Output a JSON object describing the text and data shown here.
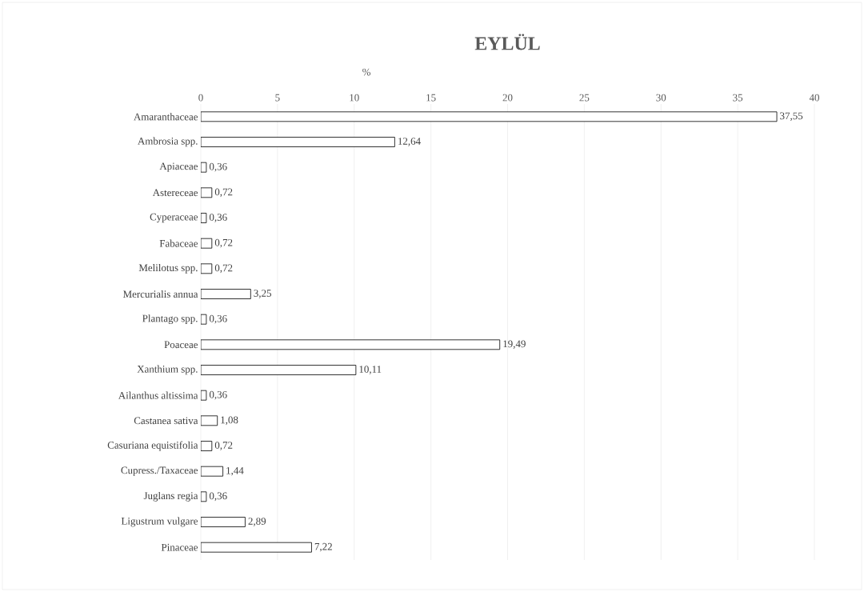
{
  "chart_data": {
    "type": "bar",
    "orientation": "horizontal",
    "title": "EYLÜL",
    "xlabel": "%",
    "categories": [
      "Amaranthaceae",
      "Ambrosia spp.",
      "Apiaceae",
      "Astereceae",
      "Cyperaceae",
      "Fabaceae",
      "Melilotus spp.",
      "Mercurialis annua",
      "Plantago spp.",
      "Poaceae",
      "Xanthium spp.",
      "Ailanthus altissima",
      "Castanea sativa",
      "Casuriana equistifolia",
      "Cupress./Taxaceae",
      "Juglans regia",
      "Ligustrum vulgare",
      "Pinaceae"
    ],
    "values": [
      37.55,
      12.64,
      0.36,
      0.72,
      0.36,
      0.72,
      0.72,
      3.25,
      0.36,
      19.49,
      10.11,
      0.36,
      1.08,
      0.72,
      1.44,
      0.36,
      2.89,
      7.22
    ],
    "value_labels": [
      "37,55",
      "12,64",
      "0,36",
      "0,72",
      "0,36",
      "0,72",
      "0,72",
      "3,25",
      "0,36",
      "19,49",
      "10,11",
      "0,36",
      "1,08",
      "0,72",
      "1,44",
      "0,36",
      "2,89",
      "7,22"
    ],
    "color": "#ffffff",
    "xlim": [
      0,
      40
    ],
    "xticks": [
      0,
      5,
      10,
      15,
      20,
      25,
      30,
      35,
      40
    ],
    "grid": "x"
  }
}
